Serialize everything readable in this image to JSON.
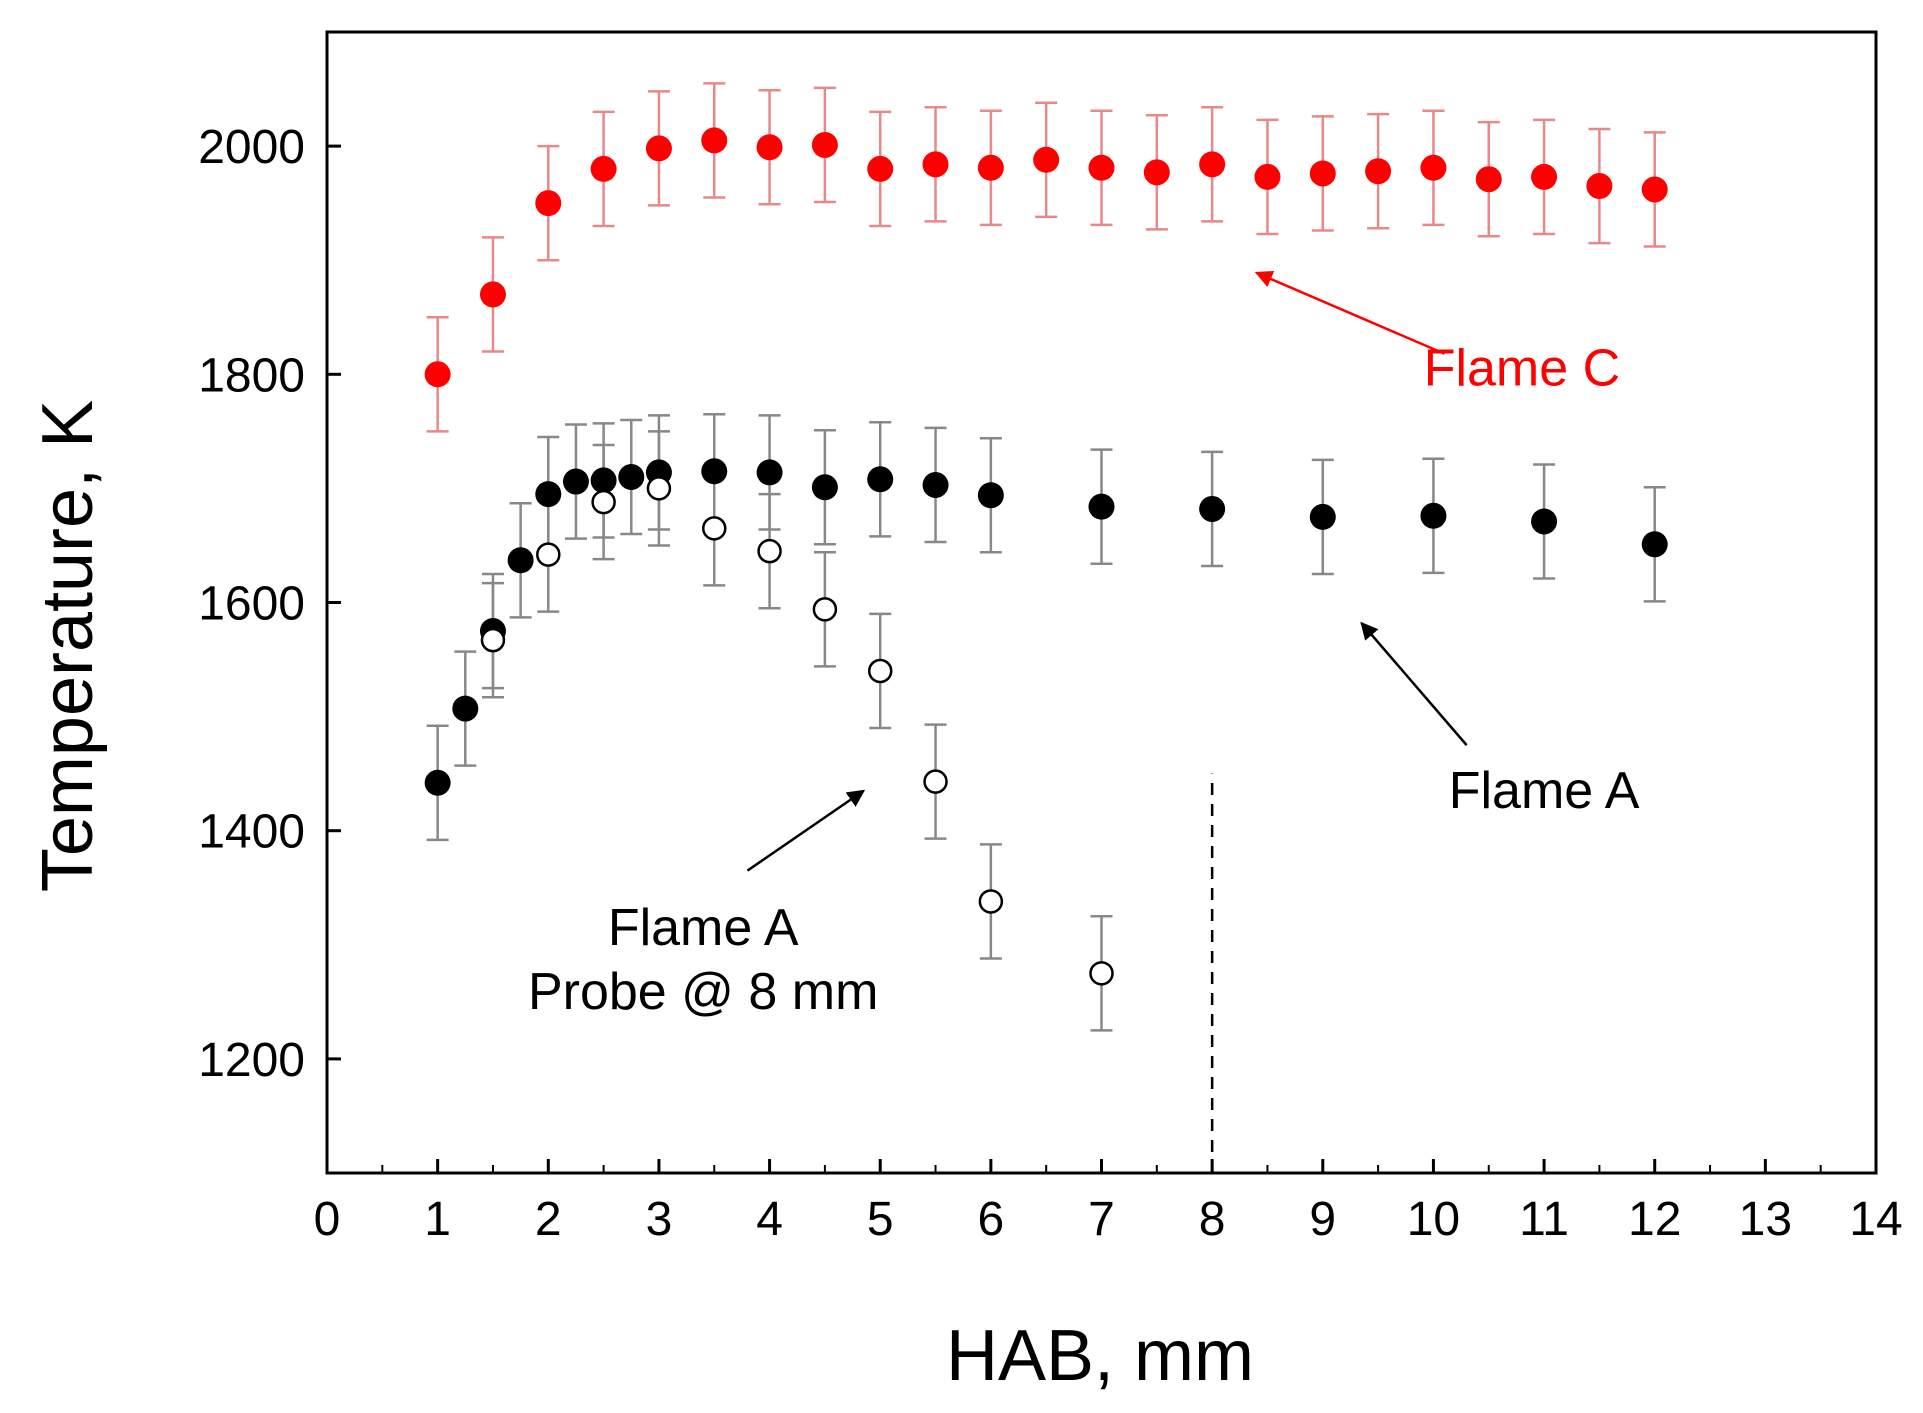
{
  "chart_data": {
    "type": "scatter",
    "title": "",
    "xlabel": "HAB, mm",
    "ylabel": "Temperature, K",
    "xlim": [
      0,
      14
    ],
    "ylim": [
      1100,
      2100
    ],
    "x_ticks": [
      0,
      1,
      2,
      3,
      4,
      5,
      6,
      7,
      8,
      9,
      10,
      11,
      12,
      13,
      14
    ],
    "y_ticks": [
      1200,
      1400,
      1600,
      1800,
      2000
    ],
    "grid": false,
    "series": [
      {
        "name": "Flame C",
        "marker": "filled-circle",
        "color": "#ff0000",
        "error_color": "#e88888",
        "x": [
          1,
          1.5,
          2,
          2.5,
          3,
          3.5,
          4,
          4.5,
          5,
          5.5,
          6,
          6.5,
          7,
          7.5,
          8,
          8.5,
          9,
          9.5,
          10,
          10.5,
          11,
          11.5,
          12
        ],
        "y": [
          1800,
          1870,
          1950,
          1980,
          1998,
          2005,
          1999,
          2001,
          1980,
          1984,
          1981,
          1988,
          1981,
          1977,
          1984,
          1973,
          1976,
          1978,
          1981,
          1971,
          1973,
          1965,
          1962
        ],
        "error": 50
      },
      {
        "name": "Flame A",
        "marker": "filled-circle",
        "color": "#000000",
        "error_color": "#888888",
        "x": [
          1,
          1.25,
          1.5,
          1.75,
          2,
          2.25,
          2.5,
          2.75,
          3,
          3.5,
          4,
          4.5,
          5,
          5.5,
          6,
          7,
          8,
          9,
          10,
          11,
          12
        ],
        "y": [
          1442,
          1507,
          1575,
          1637,
          1695,
          1706,
          1707,
          1710,
          1714,
          1715,
          1714,
          1701,
          1708,
          1703,
          1694,
          1684,
          1682,
          1675,
          1676,
          1671,
          1651
        ],
        "error": 50
      },
      {
        "name": "Flame A Probe @ 8 mm",
        "marker": "open-circle",
        "color": "#000000",
        "error_color": "#888888",
        "x": [
          1.5,
          2,
          2.5,
          3,
          3.5,
          4,
          4.5,
          5,
          5.5,
          6,
          7
        ],
        "y": [
          1567,
          1642,
          1688,
          1700,
          1665,
          1645,
          1594,
          1540,
          1443,
          1338,
          1275
        ],
        "error": 50
      }
    ],
    "reference_line": {
      "x": 8,
      "y_top": 1450,
      "style": "dashed"
    },
    "annotations": [
      {
        "label": "Flame C",
        "color": "#ff0000",
        "text_x": 10.8,
        "text_y": 1790,
        "arrow_from": [
          10.1,
          1818
        ],
        "arrow_to": [
          8.4,
          1889
        ]
      },
      {
        "label": "Flame A",
        "color": "#000000",
        "text_x": 11.0,
        "text_y": 1420,
        "arrow_from": [
          10.3,
          1475
        ],
        "arrow_to": [
          9.35,
          1582
        ]
      },
      {
        "lines": [
          "Flame A",
          "Probe @ 8 mm"
        ],
        "color": "#000000",
        "text_x": 3.4,
        "text_y": 1300,
        "arrow_from": [
          3.8,
          1365
        ],
        "arrow_to": [
          4.85,
          1435
        ]
      }
    ]
  }
}
